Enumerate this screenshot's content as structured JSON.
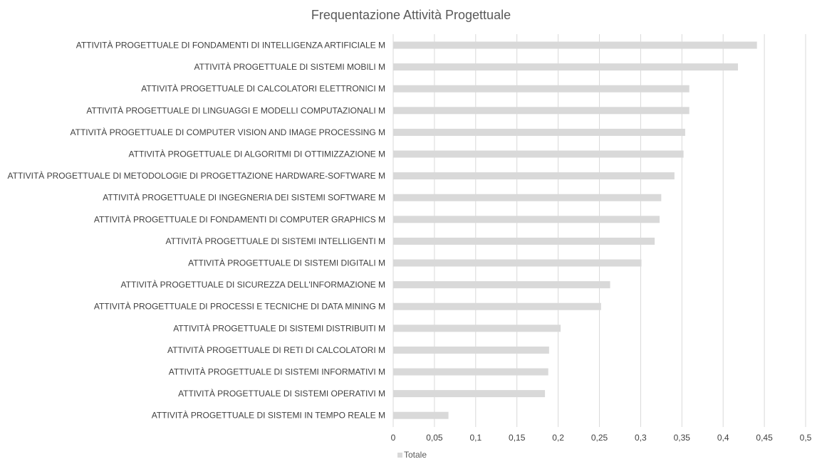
{
  "chart_data": {
    "type": "bar",
    "orientation": "horizontal",
    "title": "Frequentazione Attività Progettuale",
    "categories": [
      "ATTIVITÀ PROGETTUALE DI FONDAMENTI DI INTELLIGENZA ARTIFICIALE M",
      "ATTIVITÀ PROGETTUALE DI SISTEMI MOBILI M",
      "ATTIVITÀ PROGETTUALE DI CALCOLATORI ELETTRONICI M",
      "ATTIVITÀ PROGETTUALE DI LINGUAGGI E MODELLI COMPUTAZIONALI M",
      "ATTIVITÀ PROGETTUALE DI COMPUTER VISION AND IMAGE PROCESSING M",
      "ATTIVITÀ PROGETTUALE DI ALGORITMI DI OTTIMIZZAZIONE M",
      "ATTIVITÀ PROGETTUALE DI METODOLOGIE DI PROGETTAZIONE HARDWARE-SOFTWARE M",
      "ATTIVITÀ PROGETTUALE DI INGEGNERIA DEI SISTEMI SOFTWARE M",
      "ATTIVITÀ PROGETTUALE DI FONDAMENTI DI COMPUTER GRAPHICS M",
      "ATTIVITÀ PROGETTUALE DI SISTEMI INTELLIGENTI M",
      "ATTIVITÀ PROGETTUALE DI SISTEMI DIGITALI M",
      "ATTIVITÀ PROGETTUALE DI SICUREZZA DELL'INFORMAZIONE M",
      "ATTIVITÀ PROGETTUALE DI PROCESSI E TECNICHE DI DATA MINING M",
      "ATTIVITÀ PROGETTUALE DI SISTEMI DISTRIBUITI M",
      "ATTIVITÀ PROGETTUALE DI RETI DI CALCOLATORI M",
      "ATTIVITÀ PROGETTUALE DI SISTEMI INFORMATIVI M",
      "ATTIVITÀ PROGETTUALE DI SISTEMI OPERATIVI M",
      "ATTIVITÀ PROGETTUALE DI SISTEMI IN TEMPO REALE M"
    ],
    "series": [
      {
        "name": "Totale",
        "color": "#d9d9d9",
        "values": [
          0.441,
          0.418,
          0.359,
          0.359,
          0.354,
          0.352,
          0.341,
          0.325,
          0.323,
          0.317,
          0.301,
          0.263,
          0.252,
          0.203,
          0.189,
          0.188,
          0.184,
          0.067
        ]
      }
    ],
    "xlim": [
      0,
      0.5
    ],
    "xticks": [
      "0",
      "0,05",
      "0,1",
      "0,15",
      "0,2",
      "0,25",
      "0,3",
      "0,35",
      "0,4",
      "0,45",
      "0,5"
    ],
    "grid": "vertical",
    "legend_position": "bottom"
  }
}
